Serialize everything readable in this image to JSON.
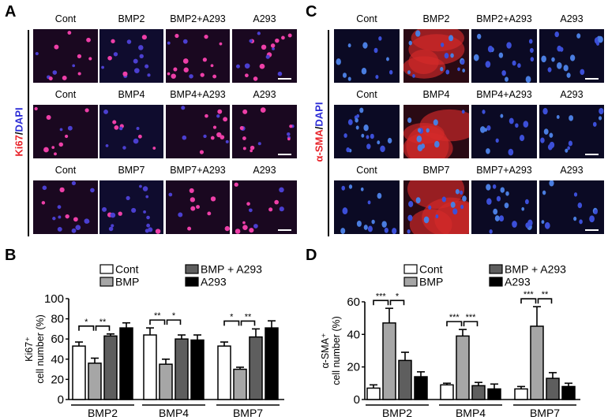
{
  "panels": {
    "A": {
      "letter": "A",
      "stain": {
        "red": "Ki67",
        "sep": "/",
        "blue": "DAPI"
      },
      "rows": [
        {
          "labels": [
            "Cont",
            "BMP2",
            "BMP2+A293",
            "A293"
          ]
        },
        {
          "labels": [
            "Cont",
            "BMP4",
            "BMP4+A293",
            "A293"
          ]
        },
        {
          "labels": [
            "Cont",
            "BMP7",
            "BMP7+A293",
            "A293"
          ]
        }
      ]
    },
    "C": {
      "letter": "C",
      "stain": {
        "red": "α-SMA",
        "sep": "/",
        "blue": "DAPI"
      },
      "rows": [
        {
          "labels": [
            "Cont",
            "BMP2",
            "BMP2+A293",
            "A293"
          ]
        },
        {
          "labels": [
            "Cont",
            "BMP4",
            "BMP4+A293",
            "A293"
          ]
        },
        {
          "labels": [
            "Cont",
            "BMP7",
            "BMP7+A293",
            "A293"
          ]
        }
      ]
    },
    "B": {
      "letter": "B"
    },
    "D": {
      "letter": "D"
    }
  },
  "colors": {
    "cont": "#ffffff",
    "bmp": "#a6a6a6",
    "bmp_a293": "#5e5e5e",
    "a293": "#000000",
    "stain_red": "#e8232a",
    "stain_blue": "#2b2bd6"
  },
  "chart_data": [
    {
      "id": "B",
      "type": "bar",
      "title": "",
      "ylabel_line1": "Ki67⁺",
      "ylabel_line2": "cell number (%)",
      "xlabel": "",
      "ylim": [
        0,
        100
      ],
      "yticks": [
        0,
        20,
        40,
        60,
        80,
        100
      ],
      "categories": [
        "BMP2",
        "BMP4",
        "BMP7"
      ],
      "legend": [
        "Cont",
        "BMP",
        "BMP + A293",
        "A293"
      ],
      "legend_position": "top",
      "grid": false,
      "series": [
        {
          "name": "Cont",
          "values": [
            53,
            64,
            53
          ],
          "errors": [
            4,
            7,
            4
          ]
        },
        {
          "name": "BMP",
          "values": [
            36,
            35,
            30
          ],
          "errors": [
            5,
            5,
            2
          ]
        },
        {
          "name": "BMP + A293",
          "values": [
            63,
            60,
            62
          ],
          "errors": [
            2,
            4,
            8
          ]
        },
        {
          "name": "A293",
          "values": [
            71,
            59,
            71
          ],
          "errors": [
            5,
            5,
            7
          ]
        }
      ],
      "significance": [
        {
          "group": 0,
          "pairs": [
            [
              0,
              1,
              "*"
            ],
            [
              1,
              2,
              "**"
            ]
          ]
        },
        {
          "group": 1,
          "pairs": [
            [
              0,
              1,
              "**"
            ],
            [
              1,
              2,
              "*"
            ]
          ]
        },
        {
          "group": 2,
          "pairs": [
            [
              0,
              1,
              "*"
            ],
            [
              1,
              2,
              "**"
            ]
          ]
        }
      ]
    },
    {
      "id": "D",
      "type": "bar",
      "title": "",
      "ylabel_line1": "α-SMA⁺",
      "ylabel_line2": "cell number (%)",
      "xlabel": "",
      "ylim": [
        0,
        60
      ],
      "yticks": [
        0,
        20,
        40,
        60
      ],
      "categories": [
        "BMP2",
        "BMP4",
        "BMP7"
      ],
      "legend": [
        "Cont",
        "BMP",
        "BMP + A293",
        "A293"
      ],
      "legend_position": "top",
      "grid": false,
      "series": [
        {
          "name": "Cont",
          "values": [
            7,
            9,
            6.5
          ],
          "errors": [
            2,
            1,
            1.5
          ]
        },
        {
          "name": "BMP",
          "values": [
            47,
            39,
            45
          ],
          "errors": [
            9,
            4,
            12
          ]
        },
        {
          "name": "BMP + A293",
          "values": [
            24,
            8.5,
            13
          ],
          "errors": [
            5,
            2,
            3.5
          ]
        },
        {
          "name": "A293",
          "values": [
            14,
            6.5,
            8
          ],
          "errors": [
            3,
            3,
            2
          ]
        }
      ],
      "significance": [
        {
          "group": 0,
          "pairs": [
            [
              0,
              1,
              "***"
            ],
            [
              1,
              2,
              "*"
            ]
          ]
        },
        {
          "group": 1,
          "pairs": [
            [
              0,
              1,
              "***"
            ],
            [
              1,
              2,
              "***"
            ]
          ]
        },
        {
          "group": 2,
          "pairs": [
            [
              0,
              1,
              "***"
            ],
            [
              1,
              2,
              "**"
            ]
          ]
        }
      ]
    }
  ]
}
